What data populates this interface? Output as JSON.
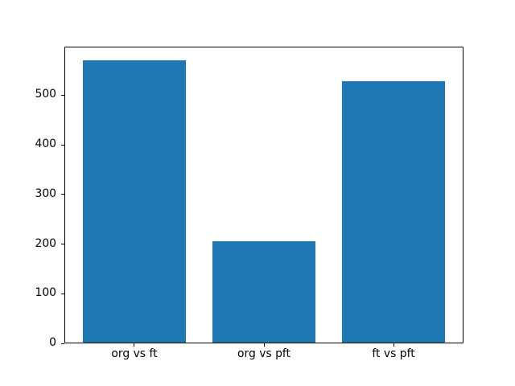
{
  "figure": {
    "background": "#ffffff"
  },
  "chart_data": {
    "type": "bar",
    "categories": [
      "org vs ft",
      "org vs pft",
      "ft vs pft"
    ],
    "values": [
      570,
      206,
      528
    ],
    "title": "",
    "xlabel": "",
    "ylabel": "",
    "yticks": [
      0,
      100,
      200,
      300,
      400,
      500
    ],
    "ylim": [
      0,
      598.5
    ],
    "xlim": [
      -0.54,
      2.54
    ],
    "bar_width": 0.8,
    "grid": false,
    "legend": false,
    "bar_color": "#1f77b4",
    "axis_color": "#000000",
    "text_color": "#000000"
  }
}
